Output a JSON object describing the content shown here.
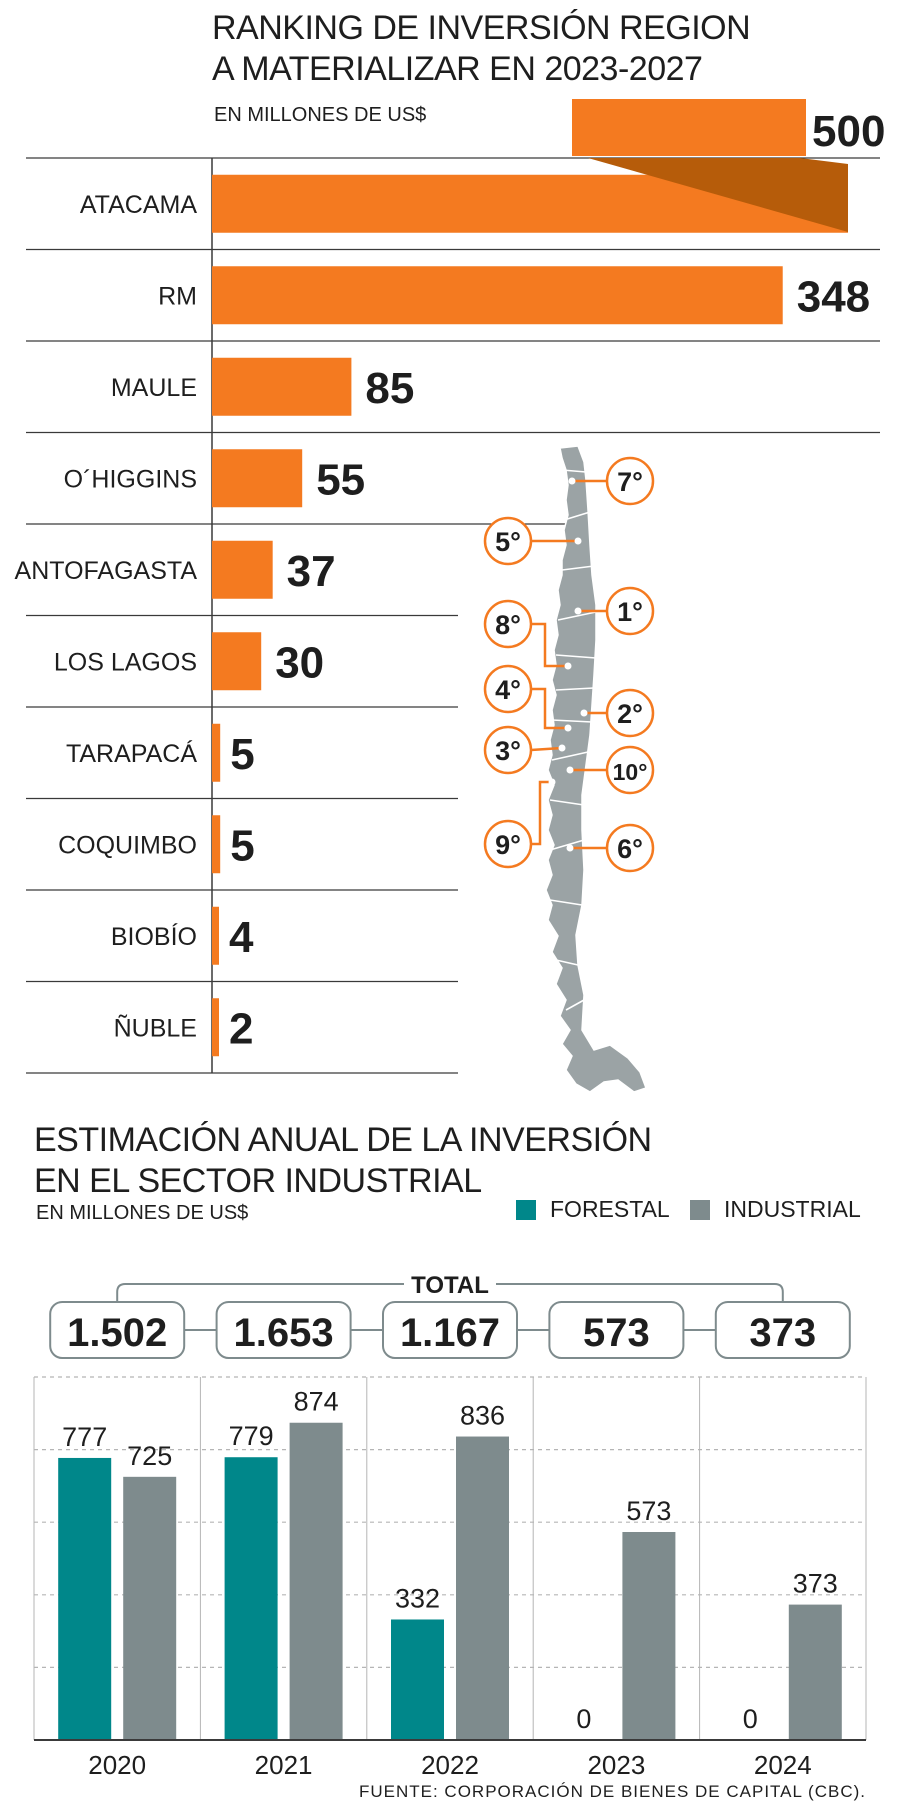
{
  "colors": {
    "orange": "#f47a20",
    "orange_dark": "#b65c0a",
    "teal": "#00878a",
    "gray": "#7e8b8d",
    "map_gray": "#9ba3a5",
    "text": "#1e1e1e"
  },
  "chart_data": [
    {
      "type": "bar",
      "orientation": "horizontal",
      "title_line1": "RANKING DE INVERSIÓN REGION",
      "title_line2": "A MATERIALIZAR EN 2023-2027",
      "subtitle": "EN MILLONES DE US$",
      "categories": [
        "ATACAMA",
        "RM",
        "MAULE",
        "O´HIGGINS",
        "ANTOFAGASTA",
        "LOS LAGOS",
        "TARAPACÁ",
        "COQUIMBO",
        "BIOBÍO",
        "ÑUBLE"
      ],
      "values": [
        500,
        348,
        85,
        55,
        37,
        30,
        5,
        5,
        4,
        2
      ],
      "value_labels": [
        "500",
        "348",
        "85",
        "55",
        "37",
        "30",
        "5",
        "5",
        "4",
        "2"
      ],
      "note": "ATACAMA bar shown with a broken axis (bar truncated, value 500 displayed in a callout above)"
    },
    {
      "type": "bar",
      "title_line1": "ESTIMACIÓN ANUAL DE LA INVERSIÓN",
      "title_line2": "EN EL SECTOR INDUSTRIAL",
      "subtitle": "EN MILLONES DE US$",
      "categories": [
        "2020",
        "2021",
        "2022",
        "2023",
        "2024"
      ],
      "series": [
        {
          "name": "FORESTAL",
          "values": [
            777,
            779,
            332,
            0,
            0
          ],
          "labels": [
            "777",
            "779",
            "332",
            "0",
            "0"
          ],
          "color": "#00878a"
        },
        {
          "name": "INDUSTRIAL",
          "values": [
            725,
            874,
            836,
            573,
            373
          ],
          "labels": [
            "725",
            "874",
            "836",
            "573",
            "373"
          ],
          "color": "#7e8b8d"
        }
      ],
      "totals_label": "TOTAL",
      "totals": [
        "1.502",
        "1.653",
        "1.167",
        "573",
        "373"
      ],
      "ylim": [
        0,
        1000
      ],
      "grid": true,
      "legend_position": "top-right"
    }
  ],
  "map": {
    "markers": [
      "7°",
      "5°",
      "1°",
      "8°",
      "4°",
      "2°",
      "3°",
      "10°",
      "9°",
      "6°"
    ]
  },
  "source": "FUENTE: CORPORACIÓN DE BIENES DE CAPITAL (CBC)."
}
